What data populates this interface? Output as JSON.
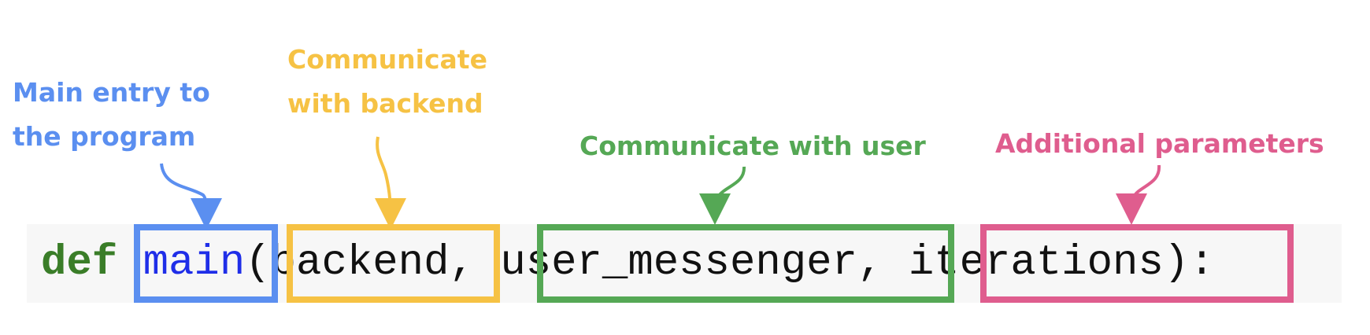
{
  "colors": {
    "blue": "#5b8ff0",
    "yellow": "#f6c244",
    "green": "#55a855",
    "pink": "#df5d8e",
    "keyword": "#3a7d28",
    "function_name": "#1f2ee8",
    "code_text": "#111111",
    "code_bg": "#f7f7f7"
  },
  "annotations": {
    "main": {
      "lines": [
        "Main entry to",
        "the program"
      ]
    },
    "backend": {
      "lines": [
        "Communicate",
        "with backend"
      ]
    },
    "user_messenger": {
      "lines": [
        "Communicate with user"
      ]
    },
    "params": {
      "lines": [
        "Additional parameters"
      ]
    }
  },
  "code": {
    "keyword": "def",
    "function_name": "main",
    "open_paren": "(",
    "param1": "backend",
    "comma1": ",",
    "param2": "user_messenger",
    "comma2": ",",
    "param3": "iterations",
    "close": "):"
  }
}
